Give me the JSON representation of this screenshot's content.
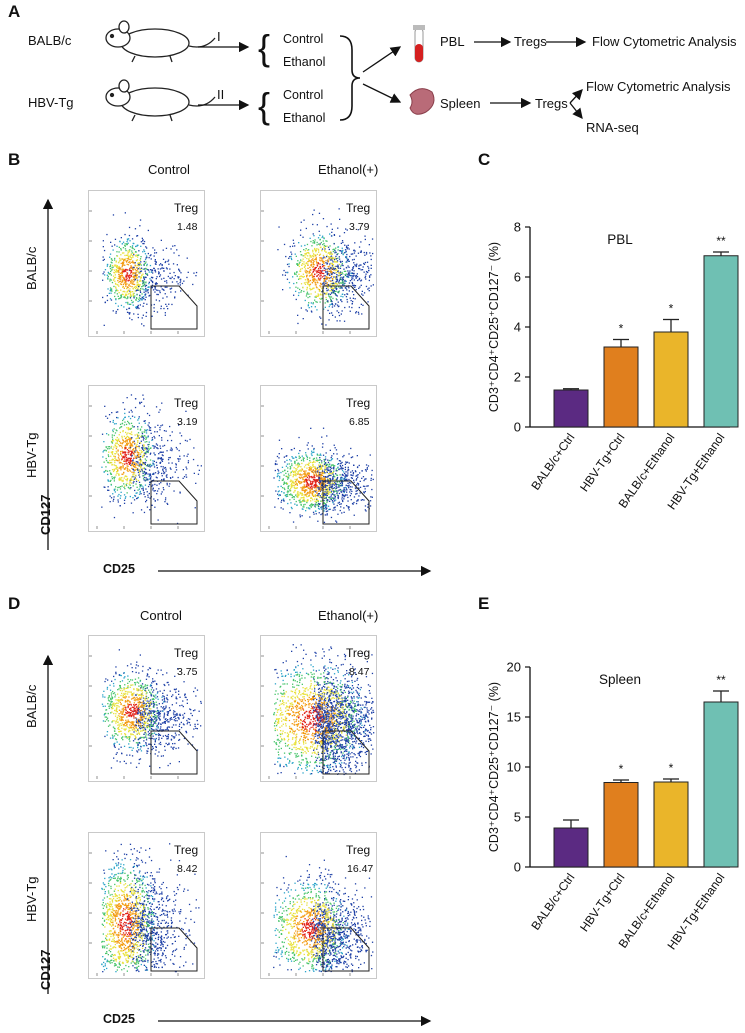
{
  "panels": {
    "a": "A",
    "b": "B",
    "c": "C",
    "d": "D",
    "e": "E"
  },
  "schema": {
    "mouse1": "BALB/c",
    "mouse2": "HBV-Tg",
    "arrow1": "I",
    "arrow2": "II",
    "control": "Control",
    "ethanol": "Ethanol",
    "pbl": "PBL",
    "tregs": "Tregs",
    "flow": "Flow Cytometric Analysis",
    "spleen": "Spleen",
    "tregs2": "Tregs",
    "flow2": "Flow Cytometric Analysis",
    "rnaseq": "RNA-seq"
  },
  "flow_b": {
    "col1": "Control",
    "col2": "Ethanol(+)",
    "row1": "BALB/c",
    "row2": "HBV-Tg",
    "yaxis": "CD127",
    "xaxis": "CD25",
    "gate_label": "Treg",
    "values": [
      "1.48",
      "3.79",
      "3.19",
      "6.85"
    ]
  },
  "flow_d": {
    "col1": "Control",
    "col2": "Ethanol(+)",
    "row1": "BALB/c",
    "row2": "HBV-Tg",
    "yaxis": "CD127",
    "xaxis": "CD25",
    "gate_label": "Treg",
    "values": [
      "3.75",
      "8.47",
      "8.42",
      "16.47"
    ]
  },
  "chart_data": [
    {
      "panel": "C",
      "type": "bar",
      "title": "PBL",
      "ylabel": "CD3⁺CD4⁺CD25⁺CD127⁻ (%)",
      "categories": [
        "BALB/c+Ctrl",
        "HBV-Tg+Ctrl",
        "BALB/c+Ethanol",
        "HBV-Tg+Ethanol"
      ],
      "values": [
        1.48,
        3.2,
        3.8,
        6.85
      ],
      "errors": [
        0.05,
        0.3,
        0.5,
        0.15
      ],
      "significance": [
        "",
        "*",
        "*",
        "**"
      ],
      "colors": [
        "#5b2a82",
        "#e07f1e",
        "#eab52a",
        "#6fc0b3"
      ],
      "ylim": [
        0,
        8
      ],
      "yticks": [
        0,
        2,
        4,
        6,
        8
      ]
    },
    {
      "panel": "E",
      "type": "bar",
      "title": "Spleen",
      "ylabel": "CD3⁺CD4⁺CD25⁺CD127⁻ (%)",
      "categories": [
        "BALB/c+Ctrl",
        "HBV-Tg+Ctrl",
        "BALB/c+Ethanol",
        "HBV-Tg+Ethanol"
      ],
      "values": [
        3.9,
        8.45,
        8.5,
        16.5
      ],
      "errors": [
        0.8,
        0.25,
        0.3,
        1.1
      ],
      "significance": [
        "",
        "*",
        "*",
        "**"
      ],
      "colors": [
        "#5b2a82",
        "#e07f1e",
        "#eab52a",
        "#6fc0b3"
      ],
      "ylim": [
        0,
        20
      ],
      "yticks": [
        0,
        5,
        10,
        15,
        20
      ]
    }
  ]
}
